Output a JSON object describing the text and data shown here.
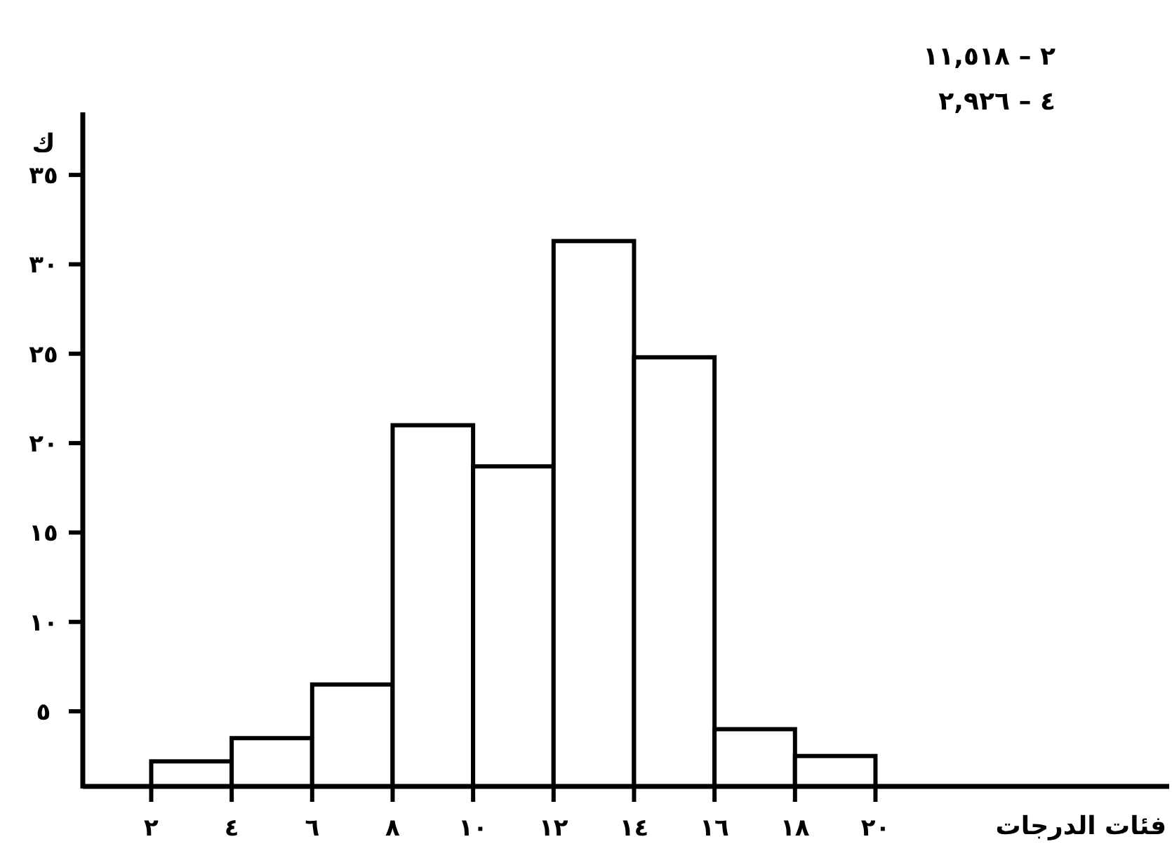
{
  "chart_data": {
    "type": "histogram",
    "ylabel": "ك",
    "xlabel": "فئات الدرجات",
    "annotations": [
      "٢ – ١١,٥١٨",
      "٤ – ٢,٩٢٦"
    ],
    "bins": [
      2,
      4,
      6,
      8,
      10,
      12,
      14,
      16,
      18,
      20
    ],
    "values": [
      2.2,
      3.5,
      6.5,
      21,
      18.7,
      31.3,
      24.8,
      4,
      2.5
    ],
    "color": "#ffffff",
    "xlim": [
      0.3,
      27.3
    ],
    "xticks": [
      {
        "value": 2,
        "label": "٢"
      },
      {
        "value": 4,
        "label": "٤"
      },
      {
        "value": 6,
        "label": "٦"
      },
      {
        "value": 8,
        "label": "٨"
      },
      {
        "value": 10,
        "label": "١٠"
      },
      {
        "value": 12,
        "label": "١٢"
      },
      {
        "value": 14,
        "label": "١٤"
      },
      {
        "value": 16,
        "label": "١٦"
      },
      {
        "value": 18,
        "label": "١٨"
      },
      {
        "value": 20,
        "label": "٢٠"
      }
    ],
    "ylim": [
      0.8,
      38.5
    ],
    "yticks": [
      {
        "value": 5,
        "label": "٥"
      },
      {
        "value": 10,
        "label": "١٠"
      },
      {
        "value": 15,
        "label": "١٥"
      },
      {
        "value": 20,
        "label": "٢٠"
      },
      {
        "value": 25,
        "label": "٢٥"
      },
      {
        "value": 30,
        "label": "٣٠"
      },
      {
        "value": 35,
        "label": "٣٥"
      }
    ]
  }
}
